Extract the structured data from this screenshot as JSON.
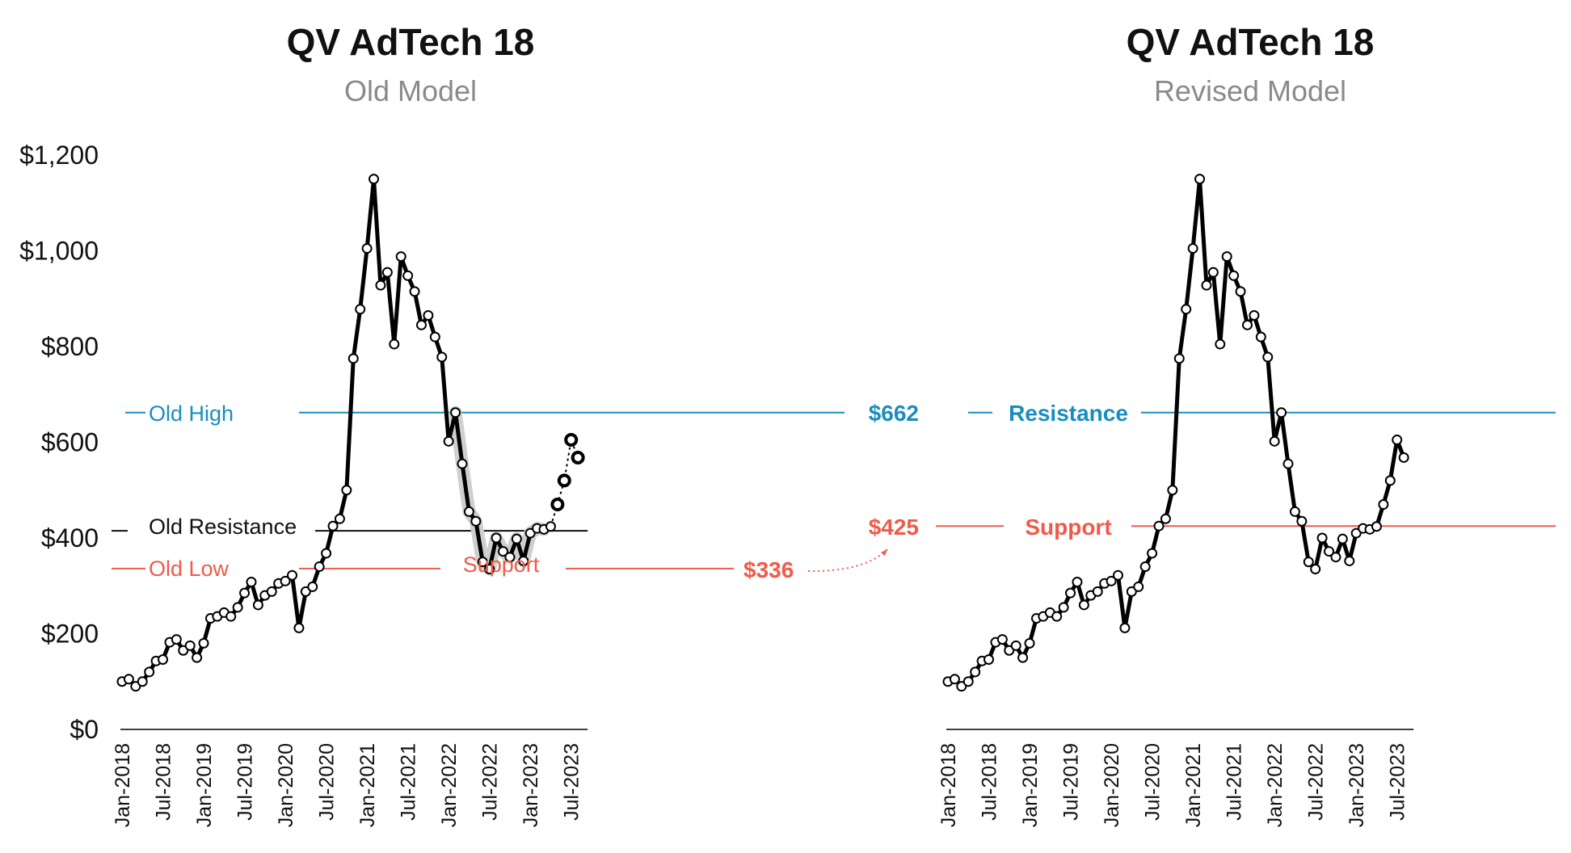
{
  "chart_data": [
    {
      "type": "line",
      "title": "QV AdTech 18",
      "subtitle": "Old Model",
      "xlabel": "",
      "ylabel": "",
      "ylim": [
        0,
        1200
      ],
      "y_ticks": [
        "$0",
        "$200",
        "$400",
        "$600",
        "$800",
        "$1,000",
        "$1,200"
      ],
      "x_ticks": [
        "Jan-2018",
        "Jul-2018",
        "Jan-2019",
        "Jul-2019",
        "Jan-2020",
        "Jul-2020",
        "Jan-2021",
        "Jul-2021",
        "Jan-2022",
        "Jul-2022",
        "Jan-2023",
        "Jul-2023"
      ],
      "grid": false,
      "annotations": {
        "old_high": "Old High",
        "old_resistance": "Old Resistance",
        "old_low": "Old Low",
        "support": "Support",
        "old_high_value": "$662",
        "low_value": "$336"
      },
      "reference_lines": [
        {
          "label": "Old High",
          "value": 662,
          "color": "#1a8dbf"
        },
        {
          "label": "Old Resistance",
          "value": 415,
          "color": "#111111"
        },
        {
          "label": "Old Low",
          "value": 336,
          "color": "#f05a4a"
        }
      ]
    },
    {
      "type": "line",
      "title": "QV AdTech 18",
      "subtitle": "Revised Model",
      "xlabel": "",
      "ylabel": "",
      "ylim": [
        0,
        1200
      ],
      "x_ticks": [
        "Jan-2018",
        "Jul-2018",
        "Jan-2019",
        "Jul-2019",
        "Jan-2020",
        "Jul-2020",
        "Jan-2021",
        "Jul-2021",
        "Jan-2022",
        "Jul-2022",
        "Jan-2023",
        "Jul-2023"
      ],
      "grid": false,
      "annotations": {
        "resistance": "Resistance",
        "support": "Support",
        "resistance_value": "$662",
        "support_value": "$425"
      },
      "reference_lines": [
        {
          "label": "Resistance",
          "value": 662,
          "color": "#1a8dbf"
        },
        {
          "label": "Support",
          "value": 425,
          "color": "#f05a4a"
        }
      ]
    }
  ],
  "series": {
    "x_start": "Jan-2018",
    "frequency": "monthly",
    "values": [
      100,
      105,
      90,
      100,
      120,
      143,
      146,
      182,
      188,
      165,
      175,
      150,
      180,
      232,
      236,
      244,
      236,
      255,
      285,
      308,
      260,
      280,
      288,
      305,
      310,
      322,
      212,
      288,
      298,
      340,
      368,
      425,
      440,
      500,
      775,
      878,
      1005,
      1150,
      928,
      955,
      805,
      988,
      948,
      915,
      845,
      865,
      820,
      778,
      602,
      662,
      555,
      455,
      435,
      350,
      335,
      400,
      372,
      360,
      398,
      352,
      410,
      420,
      418,
      424,
      470,
      520,
      605,
      568
    ]
  },
  "colors": {
    "line": "#000000",
    "high": "#1a8dbf",
    "low": "#f05a4a",
    "resistance": "#111111",
    "highlight": "#cfcfcf",
    "title": "#111111",
    "subtitle": "#8a8a8a"
  }
}
